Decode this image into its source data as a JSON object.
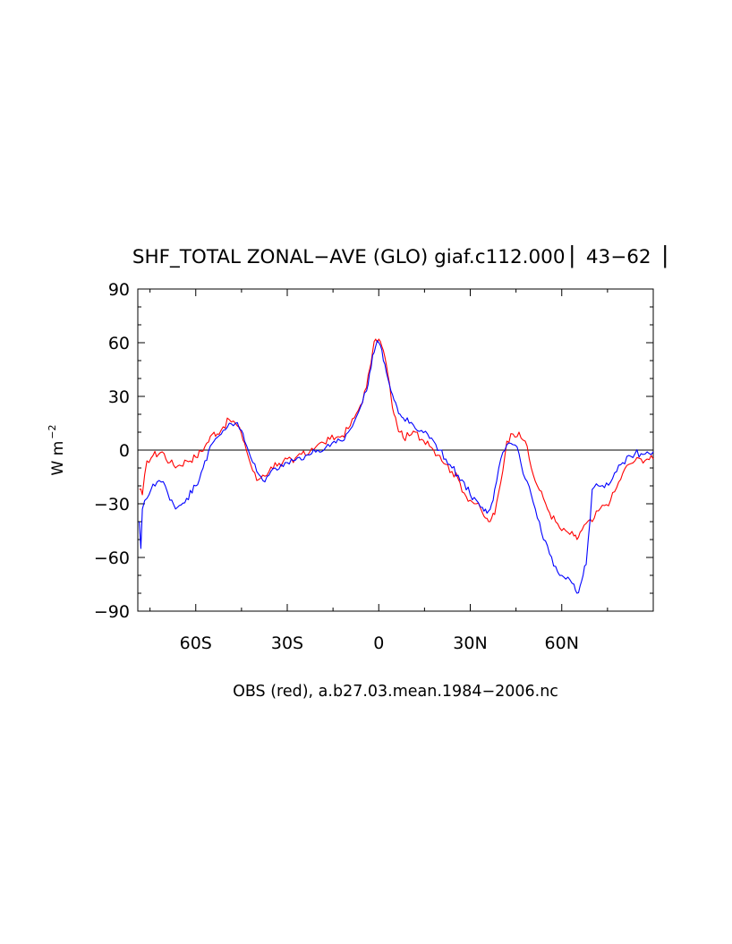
{
  "chart_data": {
    "type": "line",
    "title": "SHF_TOTAL ZONAL−AVE (GLO) giaf.c112.000 ▏43−62▕",
    "xlabel": "OBS (red), a.b27.03.mean.1984−2006.nc",
    "ylabel": "W m",
    "ylabel_exponent": "−2",
    "xlim": [
      -79,
      90
    ],
    "ylim": [
      -90,
      90
    ],
    "grid": false,
    "zero_line": true,
    "y_ticks": [
      {
        "value": 90,
        "label": "90"
      },
      {
        "value": 60,
        "label": "60"
      },
      {
        "value": 30,
        "label": "30"
      },
      {
        "value": 0,
        "label": "0"
      },
      {
        "value": -30,
        "label": "−30"
      },
      {
        "value": -60,
        "label": "−60"
      },
      {
        "value": -90,
        "label": "−90"
      }
    ],
    "x_ticks": [
      {
        "value": -60,
        "label": "60S"
      },
      {
        "value": -30,
        "label": "30S"
      },
      {
        "value": 0,
        "label": "0"
      },
      {
        "value": 30,
        "label": "30N"
      },
      {
        "value": 60,
        "label": "60N"
      }
    ],
    "series": [
      {
        "color": "#ff0000",
        "x": [
          -78.5,
          -77.5,
          -76,
          -74,
          -71,
          -68.5,
          -66,
          -63,
          -60,
          -57,
          -54,
          -53,
          -51,
          -49,
          -47,
          -45,
          -44,
          -42,
          -40,
          -38,
          -36,
          -34,
          -32,
          -30,
          -28,
          -26,
          -24,
          -22,
          -20,
          -18,
          -16,
          -14,
          -12,
          -10,
          -8,
          -6,
          -4,
          -3,
          -2,
          -1,
          0,
          1,
          2,
          3,
          4,
          5,
          6,
          7,
          8,
          10,
          12,
          14,
          16,
          18,
          20,
          22,
          24,
          26,
          28,
          30,
          32,
          34,
          35,
          36,
          37,
          38,
          40,
          42,
          44,
          46,
          48,
          50,
          52,
          54,
          56,
          58,
          60,
          62,
          64,
          65,
          66,
          68,
          70,
          72,
          74,
          76,
          78,
          80,
          82,
          84,
          86,
          88,
          90
        ],
        "y": [
          -22,
          -25,
          -6,
          -3,
          -1,
          -7,
          -9,
          -6,
          -4,
          2,
          10,
          9,
          13,
          17,
          15,
          9,
          4,
          -8,
          -17,
          -14,
          -12,
          -7,
          -9,
          -5,
          -7,
          -2,
          -3,
          1,
          3,
          4,
          6,
          7,
          8,
          12,
          18,
          25,
          35,
          45,
          55,
          62,
          62,
          58,
          52,
          42,
          30,
          20,
          14,
          10,
          7,
          8,
          10,
          6,
          5,
          0,
          -3,
          -8,
          -12,
          -16,
          -24,
          -28,
          -30,
          -35,
          -38,
          -40,
          -38,
          -36,
          -18,
          5,
          9,
          10,
          5,
          -10,
          -20,
          -27,
          -35,
          -40,
          -45,
          -46,
          -48,
          -50,
          -46,
          -41,
          -40,
          -34,
          -31,
          -28,
          -21,
          -13,
          -8,
          -6,
          -5,
          -5,
          -5
        ]
      },
      {
        "color": "#0000ff",
        "x": [
          -78.5,
          -78,
          -77.5,
          -76,
          -74,
          -72,
          -70,
          -68.5,
          -66,
          -63,
          -60,
          -57,
          -54,
          -53,
          -51,
          -49,
          -47,
          -45,
          -44,
          -42,
          -40,
          -38,
          -36,
          -34,
          -32,
          -30,
          -28,
          -26,
          -24,
          -22,
          -20,
          -18,
          -16,
          -14,
          -12,
          -10,
          -8,
          -6,
          -4,
          -3,
          -2,
          -1,
          0,
          1,
          2,
          3,
          4,
          5,
          6,
          7,
          8,
          10,
          12,
          14,
          16,
          18,
          20,
          22,
          24,
          26,
          28,
          30,
          32,
          34,
          35,
          36,
          37,
          38,
          40,
          42,
          44,
          46,
          48,
          50,
          52,
          54,
          56,
          58,
          60,
          62,
          64,
          65,
          66,
          67,
          68,
          70,
          72,
          74,
          76,
          78,
          80,
          82,
          84,
          86,
          88,
          90
        ],
        "y": [
          -40,
          -55,
          -33,
          -27,
          -19,
          -17,
          -20,
          -28,
          -32,
          -27,
          -20,
          -6,
          5,
          7,
          11,
          15,
          15,
          11,
          5,
          -4,
          -12,
          -17,
          -14,
          -10,
          -8,
          -7,
          -6,
          -4,
          -3,
          -2,
          0,
          0,
          2,
          4,
          5,
          10,
          16,
          24,
          33,
          43,
          53,
          58,
          60,
          56,
          48,
          40,
          33,
          28,
          24,
          20,
          18,
          15,
          12,
          11,
          9,
          5,
          0,
          -5,
          -10,
          -14,
          -18,
          -25,
          -28,
          -32,
          -33,
          -34,
          -30,
          -22,
          -5,
          3,
          3,
          -2,
          -16,
          -25,
          -38,
          -50,
          -58,
          -65,
          -70,
          -71,
          -75,
          -80,
          -76,
          -70,
          -64,
          -22,
          -20,
          -21,
          -18,
          -12,
          -7,
          -3,
          -2,
          -2,
          -1,
          -1
        ]
      }
    ]
  }
}
